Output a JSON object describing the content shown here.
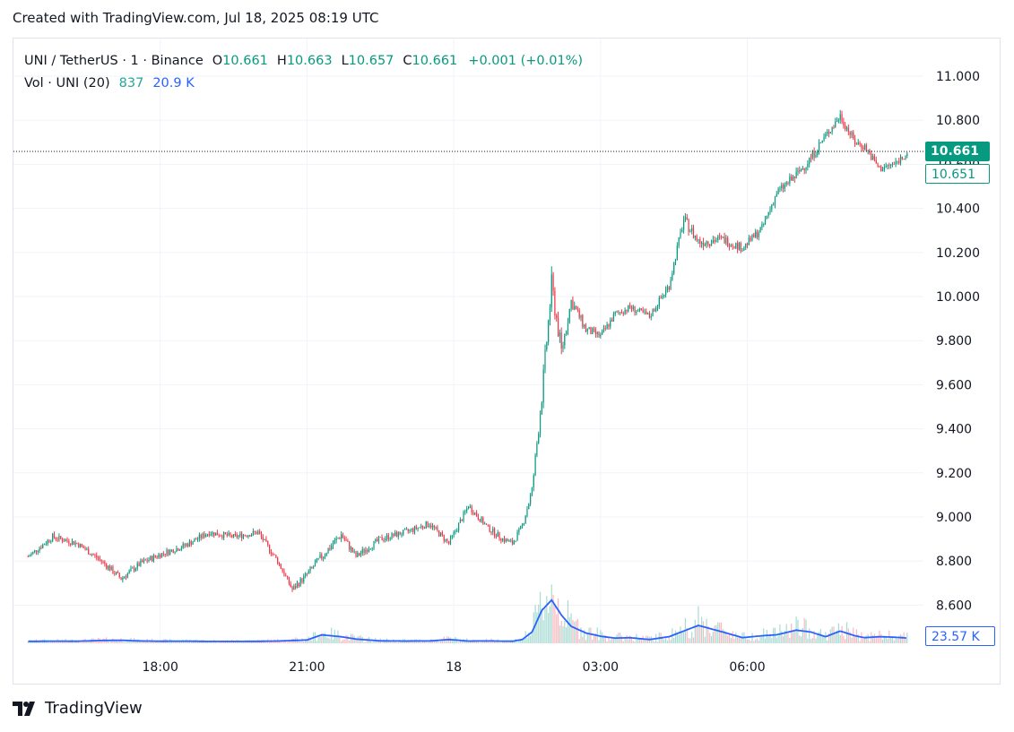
{
  "caption": "Created with TradingView.com, Jul 18, 2025 08:19 UTC",
  "legend": {
    "symbol": "UNI / TetherUS · 1 · Binance",
    "o_label": "O",
    "o_value": "10.661",
    "h_label": "H",
    "h_value": "10.663",
    "l_label": "L",
    "l_value": "10.657",
    "c_label": "C",
    "c_value": "10.661",
    "change": "+0.001 (+0.01%)",
    "volume_label": "Vol · UNI (20)",
    "volume_value": "837",
    "volume_ma_value": "20.9 K"
  },
  "badges": {
    "last_price": "10.661",
    "prev_price": "10.651",
    "volume_ma": "23.57 K"
  },
  "brand": {
    "name": "TradingView",
    "logo_icon": "tradingview-logo-icon"
  },
  "colors": {
    "up": "#089981",
    "down": "#f23645",
    "volume_ma": "#2962ff",
    "grid": "#f0f3fa"
  },
  "chart_data": {
    "type": "line",
    "title": "UNI / TetherUS · 1 · Binance",
    "x_tick_labels": [
      "18:00",
      "21:00",
      "18",
      "03:00",
      "06:00"
    ],
    "y_tick_labels": [
      "11.000",
      "10.800",
      "10.600",
      "10.400",
      "10.200",
      "10.000",
      "9.800",
      "9.600",
      "9.400",
      "9.200",
      "9.000",
      "8.800",
      "8.600"
    ],
    "ylim": [
      8.6,
      11.0
    ],
    "grid": true,
    "x_hours": [
      15.3,
      15.8,
      16.3,
      16.8,
      17.2,
      17.6,
      18.0,
      18.5,
      19.0,
      19.5,
      20.0,
      20.4,
      20.7,
      21.0,
      21.3,
      21.7,
      22.0,
      22.5,
      23.0,
      23.5,
      23.9,
      24.3,
      24.7,
      25.0,
      25.2,
      25.4,
      25.6,
      25.8,
      26.0,
      26.2,
      26.4,
      26.7,
      27.0,
      27.3,
      27.6,
      28.0,
      28.4,
      28.7,
      29.0,
      29.5,
      29.9,
      30.3,
      30.6,
      31.0,
      31.3,
      31.6,
      31.9,
      32.2,
      32.4,
      32.7,
      33.0,
      33.3
    ],
    "price": [
      8.82,
      8.91,
      8.88,
      8.8,
      8.72,
      8.79,
      8.83,
      8.87,
      8.93,
      8.91,
      8.93,
      8.8,
      8.67,
      8.74,
      8.82,
      8.92,
      8.82,
      8.9,
      8.93,
      8.97,
      8.88,
      9.05,
      8.95,
      8.9,
      8.88,
      8.96,
      9.12,
      9.55,
      10.05,
      9.75,
      9.98,
      9.85,
      9.82,
      9.92,
      9.95,
      9.91,
      10.05,
      10.35,
      10.25,
      10.26,
      10.22,
      10.31,
      10.47,
      10.55,
      10.63,
      10.73,
      10.82,
      10.7,
      10.68,
      10.58,
      10.6,
      10.66
    ],
    "volume_ma_k": [
      2.0,
      2.3,
      2.2,
      3.0,
      3.2,
      2.5,
      2.2,
      2.3,
      2.0,
      2.0,
      2.1,
      2.4,
      3.0,
      3.5,
      9.0,
      7.0,
      4.5,
      2.6,
      2.4,
      2.5,
      4.0,
      2.4,
      2.5,
      2.3,
      2.2,
      4.0,
      12.0,
      35.0,
      46.0,
      30.0,
      18.0,
      11.0,
      7.5,
      5.5,
      6.0,
      4.0,
      7.0,
      13.0,
      19.0,
      12.0,
      6.0,
      8.0,
      9.0,
      14.0,
      12.0,
      7.0,
      13.0,
      8.0,
      6.0,
      7.0,
      6.5,
      5.5
    ],
    "x_tick_hours": [
      18,
      21,
      24,
      27,
      30
    ]
  }
}
